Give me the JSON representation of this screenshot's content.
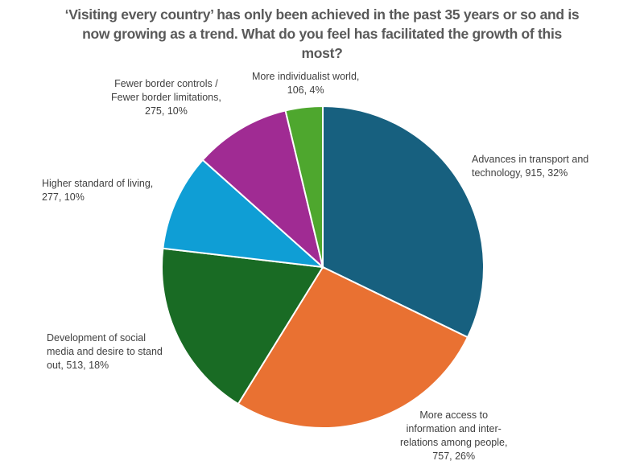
{
  "chart_data": {
    "type": "pie",
    "title": "‘Visiting every country’ has only been achieved in the past 35 years or so and is now growing as a trend. What do you feel has facilitated the growth of this most?",
    "title_lines": [
      "‘Visiting every country’ has only been achieved in the past 35 years or so and is",
      "now growing as a trend. What do you feel has facilitated the growth of this",
      "most?"
    ],
    "slices": [
      {
        "name": "Advances in transport and technology",
        "value": 915,
        "percent": 32,
        "color": "#17607f",
        "label_lines": [
          "Advances in transport and",
          "technology, 915, 32%"
        ]
      },
      {
        "name": "More access to information and inter-relations among people",
        "value": 757,
        "percent": 26,
        "color": "#e97132",
        "label_lines": [
          "More access to",
          "information and inter-",
          "relations among people,",
          "757, 26%"
        ]
      },
      {
        "name": "Development of social media and desire to stand out",
        "value": 513,
        "percent": 18,
        "color": "#196b24",
        "label_lines": [
          "Development of social",
          "media and desire to stand",
          "out, 513, 18%"
        ]
      },
      {
        "name": "Higher standard of living",
        "value": 277,
        "percent": 10,
        "color": "#0f9ed5",
        "label_lines": [
          "Higher standard of living,",
          "277, 10%"
        ]
      },
      {
        "name": "Fewer border controls / Fewer border limitations",
        "value": 275,
        "percent": 10,
        "color": "#a02b93",
        "label_lines": [
          "Fewer border controls /",
          "Fewer border limitations,",
          "275, 10%"
        ]
      },
      {
        "name": "More individualist world",
        "value": 106,
        "percent": 4,
        "color": "#4ea72e",
        "label_lines": [
          "More individualist world,",
          "106, 4%"
        ]
      }
    ],
    "start_angle": "top",
    "direction": "clockwise",
    "legend": "none"
  }
}
